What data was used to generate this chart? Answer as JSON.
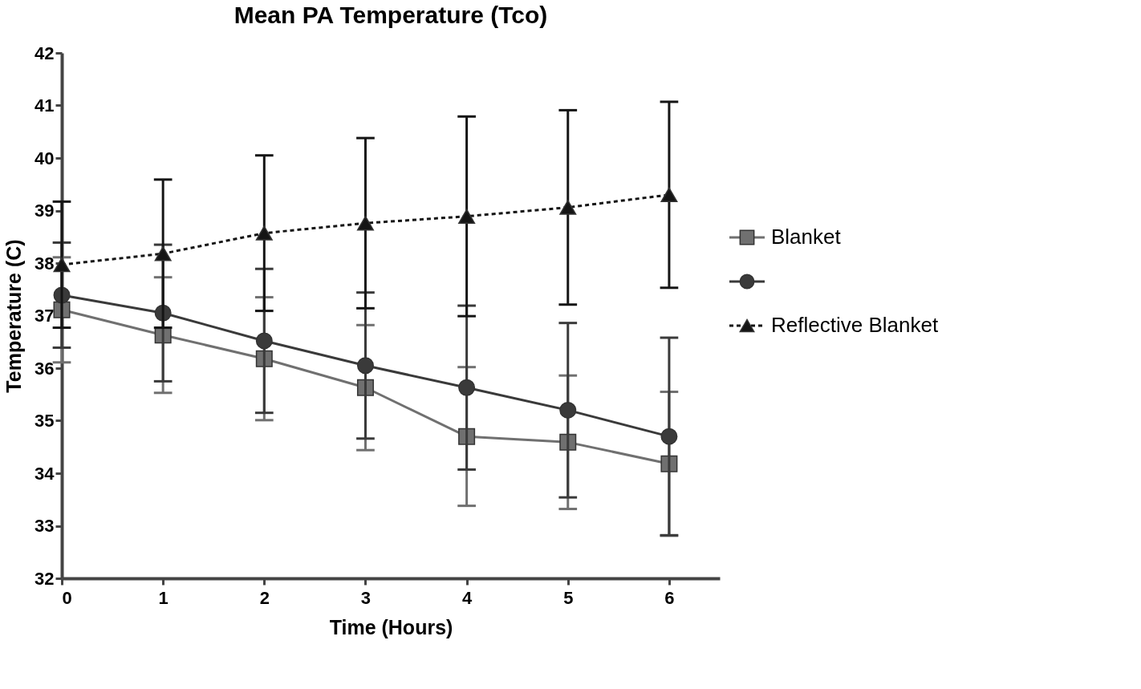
{
  "chart_data": {
    "type": "line",
    "title": "Mean PA Temperature (Tco)",
    "xlabel": "Time (Hours)",
    "ylabel": "Temperature (C)",
    "x": [
      0,
      1,
      2,
      3,
      4,
      5,
      6
    ],
    "xlim": [
      0,
      6.5
    ],
    "xticks": [
      0,
      1,
      2,
      3,
      4,
      5,
      6
    ],
    "ylim": [
      32,
      42
    ],
    "yticks": [
      32,
      33,
      34,
      35,
      36,
      37,
      38,
      39,
      40,
      41,
      42
    ],
    "grid": false,
    "legend": "right",
    "series": [
      {
        "name": "Blanket",
        "color": "#707070",
        "marker": "square",
        "line_style": "solid",
        "values": [
          37.11,
          36.63,
          36.18,
          35.63,
          34.7,
          34.59,
          34.18
        ],
        "errors": [
          1.0,
          1.1,
          1.17,
          1.19,
          1.32,
          1.27,
          1.37
        ]
      },
      {
        "color": "#3a3a3a",
        "marker": "circle",
        "line_style": "solid",
        "values": [
          37.39,
          37.05,
          36.52,
          36.05,
          35.63,
          35.2,
          34.7
        ],
        "errors": [
          1.0,
          1.3,
          1.37,
          1.39,
          1.56,
          1.66,
          1.88
        ]
      },
      {
        "name": "Reflective Blanket",
        "color": "#151515",
        "marker": "triangle",
        "line_style": "dashed",
        "values": [
          37.97,
          38.18,
          38.57,
          38.76,
          38.89,
          39.06,
          39.3
        ],
        "errors": [
          1.2,
          1.41,
          1.48,
          1.62,
          1.9,
          1.85,
          1.77
        ]
      }
    ]
  }
}
